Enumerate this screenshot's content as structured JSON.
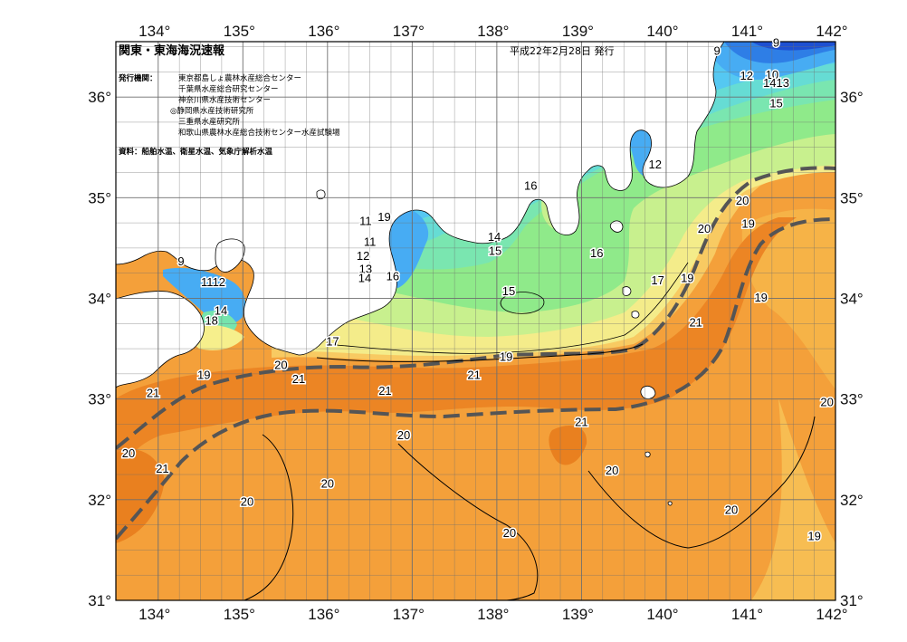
{
  "title": "関東・東海海況速報",
  "date": "平成22年2月28日 発行",
  "issuers_label": "発行機関：",
  "issuers": [
    "東京都島しょ農林水産総合センター",
    "千葉県水産総合研究センター",
    "神奈川県水産技術センター",
    "◎静岡県水産技術研究所",
    "三重県水産研究所",
    "和歌山県農林水産総合技術センター水産試験場"
  ],
  "source": "資料：船舶水温、衛星水温、気象庁解析水温",
  "lon_ticks": [
    "134°",
    "135°",
    "136°",
    "137°",
    "138°",
    "139°",
    "140°",
    "141°",
    "142°"
  ],
  "lat_ticks": [
    "36°",
    "35°",
    "34°",
    "33°",
    "32°",
    "31°"
  ],
  "isotherm_labels": [
    {
      "text": "9",
      "lon": 141.3,
      "lat": 36.5
    },
    {
      "text": "9",
      "lon": 140.6,
      "lat": 36.42
    },
    {
      "text": "12",
      "lon": 140.95,
      "lat": 36.17
    },
    {
      "text": "10",
      "lon": 141.25,
      "lat": 36.18
    },
    {
      "text": "1413",
      "lon": 141.3,
      "lat": 36.1
    },
    {
      "text": "15",
      "lon": 141.3,
      "lat": 35.9
    },
    {
      "text": "12",
      "lon": 139.87,
      "lat": 35.29
    },
    {
      "text": "16",
      "lon": 138.4,
      "lat": 35.08
    },
    {
      "text": "20",
      "lon": 140.9,
      "lat": 34.93
    },
    {
      "text": "19",
      "lon": 136.67,
      "lat": 34.77
    },
    {
      "text": "11",
      "lon": 136.45,
      "lat": 34.73
    },
    {
      "text": "20",
      "lon": 140.45,
      "lat": 34.65
    },
    {
      "text": "19",
      "lon": 140.97,
      "lat": 34.7
    },
    {
      "text": "14",
      "lon": 137.97,
      "lat": 34.57
    },
    {
      "text": "11",
      "lon": 136.5,
      "lat": 34.52
    },
    {
      "text": "15",
      "lon": 137.98,
      "lat": 34.43
    },
    {
      "text": "16",
      "lon": 139.18,
      "lat": 34.41
    },
    {
      "text": "12",
      "lon": 136.42,
      "lat": 34.38
    },
    {
      "text": "9",
      "lon": 134.27,
      "lat": 34.33
    },
    {
      "text": "13",
      "lon": 136.45,
      "lat": 34.25
    },
    {
      "text": "14",
      "lon": 136.44,
      "lat": 34.16
    },
    {
      "text": "16",
      "lon": 136.77,
      "lat": 34.18
    },
    {
      "text": "1112",
      "lon": 134.65,
      "lat": 34.12
    },
    {
      "text": "17",
      "lon": 139.9,
      "lat": 34.14
    },
    {
      "text": "19",
      "lon": 140.25,
      "lat": 34.16
    },
    {
      "text": "15",
      "lon": 138.14,
      "lat": 34.03
    },
    {
      "text": "19",
      "lon": 141.12,
      "lat": 33.97
    },
    {
      "text": "14",
      "lon": 134.74,
      "lat": 33.84
    },
    {
      "text": "18",
      "lon": 134.63,
      "lat": 33.74
    },
    {
      "text": "21",
      "lon": 140.35,
      "lat": 33.72
    },
    {
      "text": "17",
      "lon": 136.06,
      "lat": 33.53
    },
    {
      "text": "19",
      "lon": 138.11,
      "lat": 33.38
    },
    {
      "text": "20",
      "lon": 135.45,
      "lat": 33.3
    },
    {
      "text": "19",
      "lon": 134.54,
      "lat": 33.2
    },
    {
      "text": "21",
      "lon": 137.73,
      "lat": 33.2
    },
    {
      "text": "21",
      "lon": 135.66,
      "lat": 33.16
    },
    {
      "text": "21",
      "lon": 133.94,
      "lat": 33.02
    },
    {
      "text": "21",
      "lon": 136.68,
      "lat": 33.04
    },
    {
      "text": "20",
      "lon": 141.9,
      "lat": 32.93
    },
    {
      "text": "21",
      "lon": 139.0,
      "lat": 32.73
    },
    {
      "text": "20",
      "lon": 136.9,
      "lat": 32.6
    },
    {
      "text": "20",
      "lon": 133.65,
      "lat": 32.42
    },
    {
      "text": "21",
      "lon": 134.05,
      "lat": 32.27
    },
    {
      "text": "20",
      "lon": 139.36,
      "lat": 32.25
    },
    {
      "text": "20",
      "lon": 136.0,
      "lat": 32.12
    },
    {
      "text": "20",
      "lon": 135.05,
      "lat": 31.94
    },
    {
      "text": "20",
      "lon": 140.77,
      "lat": 31.86
    },
    {
      "text": "19",
      "lon": 141.75,
      "lat": 31.6
    },
    {
      "text": "20",
      "lon": 138.15,
      "lat": 31.63
    }
  ],
  "colors": {
    "frame": "#000000",
    "grid": "#6e6e6e",
    "land": "#ffffff",
    "current_axis": "#555555",
    "water_20": "#f4a03a",
    "water_21": "#ee8a26",
    "water_19": "#f6b347",
    "water_18": "#f9cf68",
    "water_17": "#f6ef8c",
    "water_16": "#c6f08c",
    "water_15": "#88ea88",
    "water_14": "#77e6a8",
    "water_13": "#66dfc9",
    "water_12": "#55d0f2",
    "water_11": "#4fb7f5",
    "water_10": "#2e7ee6",
    "water_9": "#1e50d2"
  }
}
